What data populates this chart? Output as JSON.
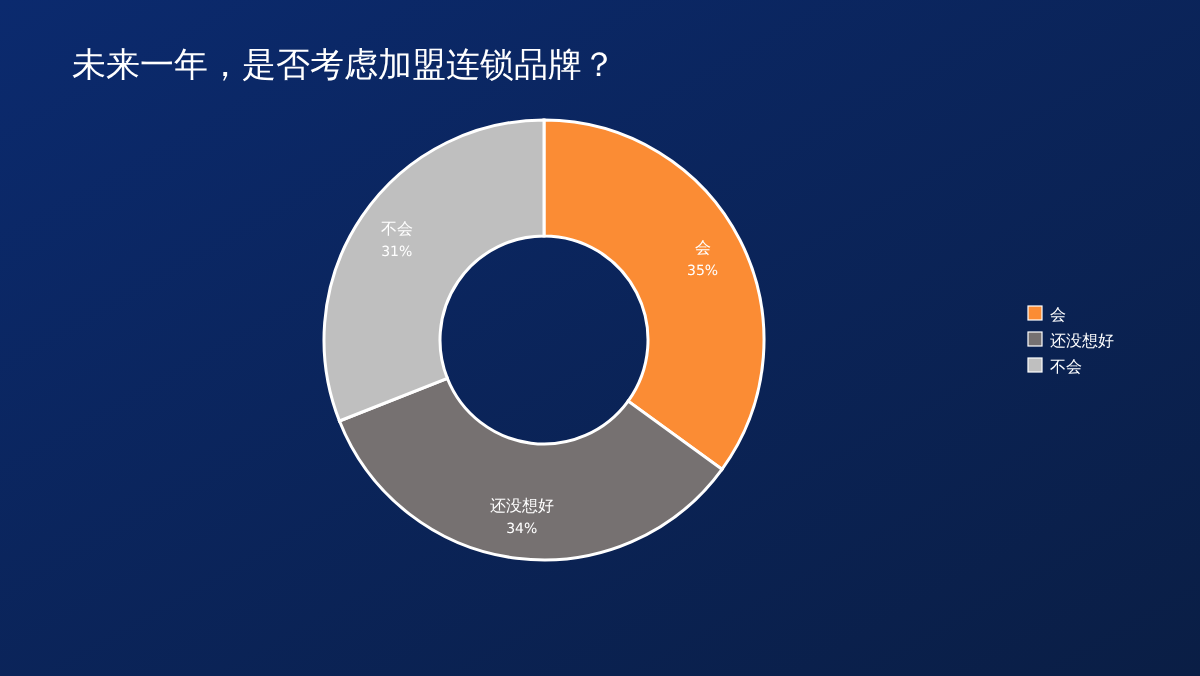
{
  "chart_data": {
    "type": "donut",
    "title": "未来一年，是否考虑加盟连锁品牌？",
    "categories": [
      "会",
      "还没想好",
      "不会"
    ],
    "values": [
      35,
      34,
      31
    ],
    "colors": [
      "#fb8c34",
      "#767171",
      "#bfbfbf"
    ],
    "value_labels": [
      "35%",
      "34%",
      "31%"
    ],
    "legend": "right"
  }
}
